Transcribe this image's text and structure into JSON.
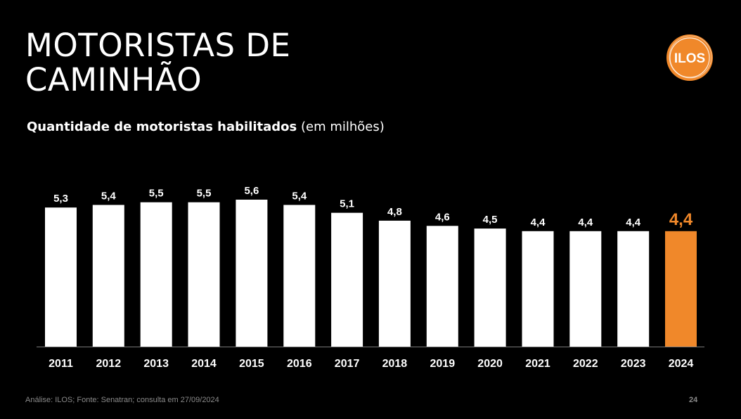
{
  "title_line1": "MOTORISTAS DE",
  "title_line2": "CAMINHÃO",
  "subtitle_bold": "Quantidade de motoristas habilitados",
  "subtitle_rest": " (em milhões)",
  "logo_text": "ILOS",
  "footer": "Análise: ILOS; Fonte: Senatran; consulta em 27/09/2024",
  "page_number": "24",
  "colors": {
    "bar": "#ffffff",
    "highlight": "#f0882a",
    "background": "#000000"
  },
  "chart_data": {
    "type": "bar",
    "title": "Quantidade de motoristas habilitados (em milhões)",
    "categories": [
      "2011",
      "2012",
      "2013",
      "2014",
      "2015",
      "2016",
      "2017",
      "2018",
      "2019",
      "2020",
      "2021",
      "2022",
      "2023",
      "2024"
    ],
    "values": [
      5.3,
      5.4,
      5.5,
      5.5,
      5.6,
      5.4,
      5.1,
      4.8,
      4.6,
      4.5,
      4.4,
      4.4,
      4.4,
      4.4
    ],
    "value_labels": [
      "5,3",
      "5,4",
      "5,5",
      "5,5",
      "5,6",
      "5,4",
      "5,1",
      "4,8",
      "4,6",
      "4,5",
      "4,4",
      "4,4",
      "4,4",
      "4,4"
    ],
    "highlight_category": "2024",
    "xlabel": "",
    "ylabel": "",
    "ylim": [
      0,
      5.6
    ],
    "grid": false,
    "legend": "none"
  }
}
